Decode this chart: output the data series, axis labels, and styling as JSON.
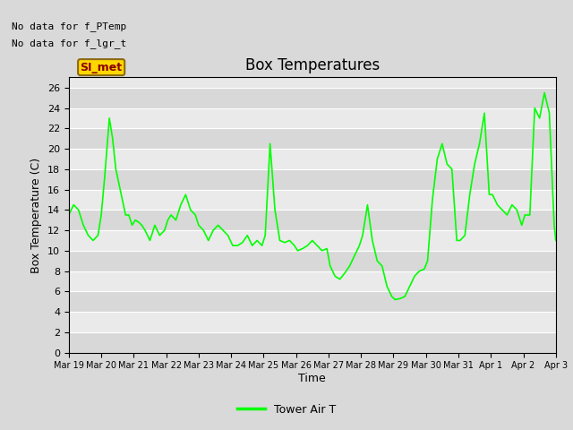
{
  "title": "Box Temperatures",
  "xlabel": "Time",
  "ylabel": "Box Temperature (C)",
  "ylim": [
    0,
    27
  ],
  "yticks": [
    0,
    2,
    4,
    6,
    8,
    10,
    12,
    14,
    16,
    18,
    20,
    22,
    24,
    26
  ],
  "line_color": "#00FF00",
  "line_width": 1.2,
  "plot_bg_color": "#E8E8E8",
  "fig_bg_color": "#E0E0E0",
  "band_colors": [
    "#D8D8D8",
    "#EAEAEA"
  ],
  "legend_label": "Tower Air T",
  "no_data_texts": [
    "No data for f_PTemp",
    "No data for f_lgr_t"
  ],
  "si_met_label": "SI_met",
  "xtick_labels": [
    "Mar 19",
    "Mar 20",
    "Mar 21",
    "Mar 22",
    "Mar 23",
    "Mar 24",
    "Mar 25",
    "Mar 26",
    "Mar 27",
    "Mar 28",
    "Mar 29",
    "Mar 30",
    "Mar 31",
    "Apr 1",
    "Apr 2",
    "Apr 3"
  ],
  "x_values": [
    0.0,
    0.15,
    0.3,
    0.45,
    0.6,
    0.75,
    0.9,
    1.0,
    1.1,
    1.25,
    1.35,
    1.45,
    1.55,
    1.65,
    1.75,
    1.85,
    1.95,
    2.05,
    2.15,
    2.25,
    2.35,
    2.5,
    2.65,
    2.8,
    2.95,
    3.05,
    3.15,
    3.3,
    3.45,
    3.6,
    3.75,
    3.9,
    4.0,
    4.15,
    4.3,
    4.45,
    4.6,
    4.75,
    4.9,
    5.05,
    5.2,
    5.35,
    5.5,
    5.65,
    5.8,
    5.95,
    6.05,
    6.2,
    6.35,
    6.5,
    6.65,
    6.8,
    6.95,
    7.05,
    7.2,
    7.35,
    7.5,
    7.65,
    7.8,
    7.95,
    8.05,
    8.2,
    8.35,
    8.5,
    8.65,
    8.8,
    8.95,
    9.05,
    9.2,
    9.35,
    9.5,
    9.65,
    9.8,
    9.95,
    10.05,
    10.2,
    10.35,
    10.5,
    10.65,
    10.8,
    10.95,
    11.05,
    11.2,
    11.35,
    11.5,
    11.65,
    11.8,
    11.95,
    12.05,
    12.2,
    12.35,
    12.5,
    12.65,
    12.8,
    12.95,
    13.05,
    13.2,
    13.35,
    13.5,
    13.65,
    13.8,
    13.95,
    14.05,
    14.2,
    14.35,
    14.5,
    14.65,
    14.8,
    14.95,
    15.0
  ],
  "y_values": [
    13.5,
    14.5,
    14.0,
    12.5,
    11.5,
    11.0,
    11.5,
    13.5,
    17.0,
    23.0,
    21.0,
    18.0,
    16.5,
    15.0,
    13.5,
    13.5,
    12.5,
    13.0,
    12.8,
    12.5,
    12.0,
    11.0,
    12.5,
    11.5,
    12.0,
    13.0,
    13.5,
    13.0,
    14.5,
    15.5,
    14.0,
    13.5,
    12.5,
    12.0,
    11.0,
    12.0,
    12.5,
    12.0,
    11.5,
    10.5,
    10.5,
    10.8,
    11.5,
    10.5,
    11.0,
    10.5,
    11.5,
    20.5,
    14.0,
    11.0,
    10.8,
    11.0,
    10.5,
    10.0,
    10.2,
    10.5,
    11.0,
    10.5,
    10.0,
    10.2,
    8.5,
    7.5,
    7.2,
    7.8,
    8.5,
    9.5,
    10.5,
    11.5,
    14.5,
    11.0,
    9.0,
    8.5,
    6.5,
    5.5,
    5.2,
    5.3,
    5.5,
    6.5,
    7.5,
    8.0,
    8.2,
    9.0,
    15.0,
    19.0,
    20.5,
    18.5,
    18.0,
    11.0,
    11.0,
    11.5,
    15.5,
    18.5,
    20.5,
    23.5,
    15.5,
    15.5,
    14.5,
    14.0,
    13.5,
    14.5,
    14.0,
    12.5,
    13.5,
    13.5,
    24.0,
    23.0,
    25.5,
    23.5,
    12.5,
    11.0
  ],
  "x_num_days": 15,
  "xlim_start": 0,
  "xlim_end": 15
}
